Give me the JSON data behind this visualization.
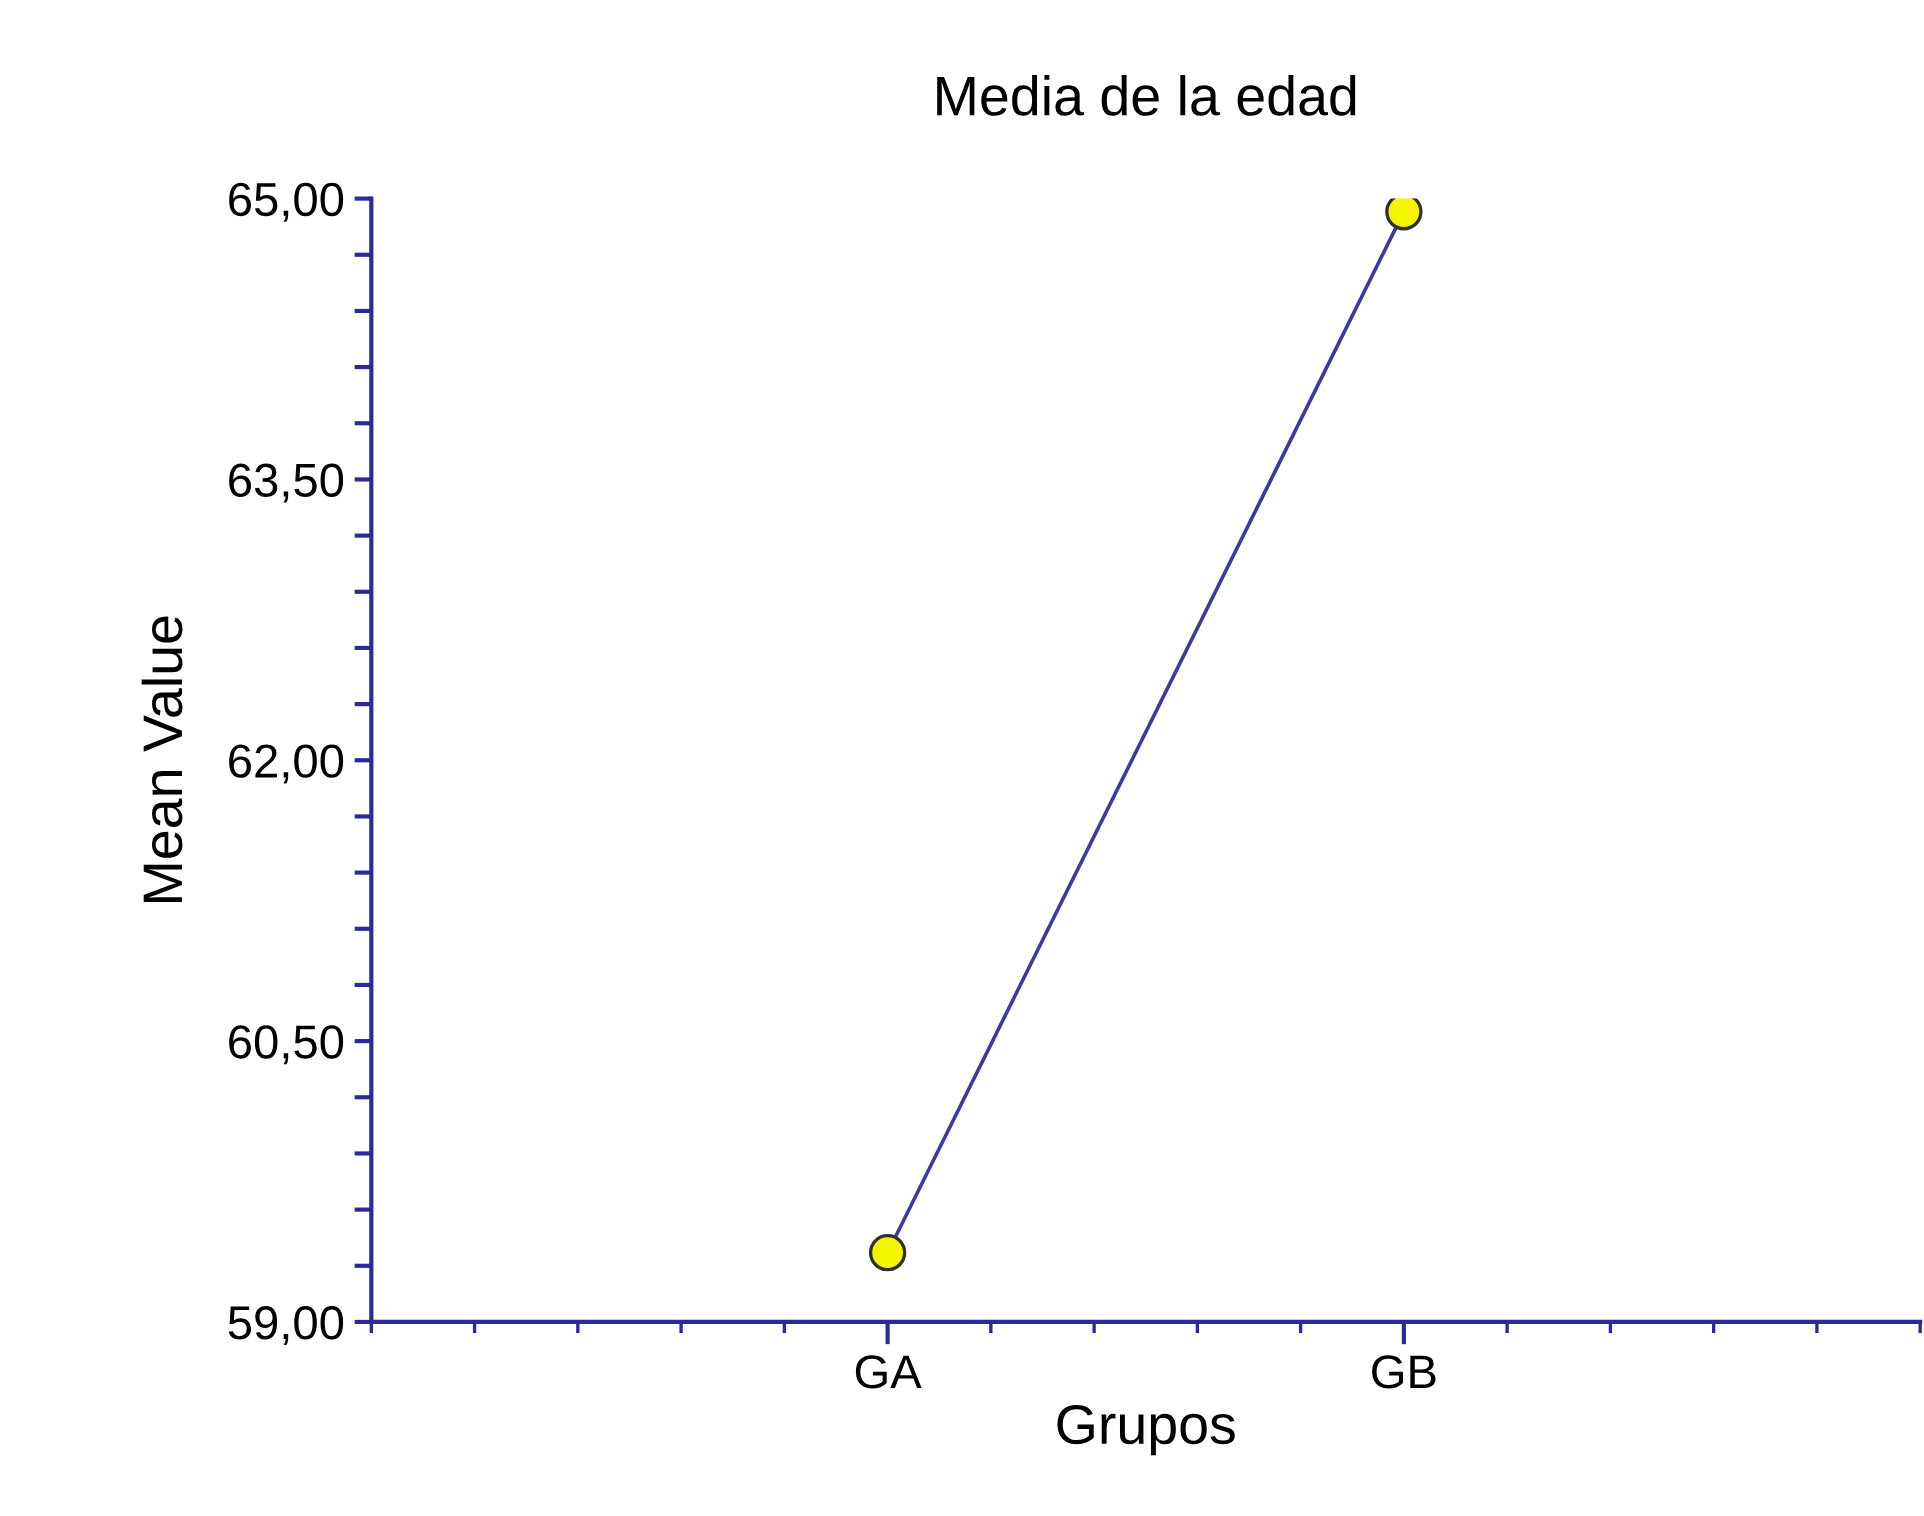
{
  "chart_data": {
    "type": "line",
    "title": "Media de la edad",
    "xlabel": "Grupos",
    "ylabel": "Mean Value",
    "categories": [
      "GA",
      "GB"
    ],
    "series": [
      {
        "color": "#3a3aa0",
        "colors": [
          "#f5f500",
          "#f5f500"
        ],
        "values": [
          59.37,
          64.93
        ]
      }
    ],
    "ylim": [
      59,
      65
    ],
    "yticks": [
      {
        "value": 59,
        "label": "59,00"
      },
      {
        "value": 59.3,
        "label": null
      },
      {
        "value": 59.6,
        "label": null
      },
      {
        "value": 59.9,
        "label": null
      },
      {
        "value": 60.2,
        "label": null
      },
      {
        "value": 60.5,
        "label": "60,50"
      },
      {
        "value": 60.8,
        "label": null
      },
      {
        "value": 61.1,
        "label": null
      },
      {
        "value": 61.4,
        "label": null
      },
      {
        "value": 61.7,
        "label": null
      },
      {
        "value": 62,
        "label": "62,00"
      },
      {
        "value": 62.3,
        "label": null
      },
      {
        "value": 62.6,
        "label": null
      },
      {
        "value": 62.9,
        "label": null
      },
      {
        "value": 63.2,
        "label": null
      },
      {
        "value": 63.5,
        "label": "63,50"
      },
      {
        "value": 63.8,
        "label": null
      },
      {
        "value": 64.1,
        "label": null
      },
      {
        "value": 64.4,
        "label": null
      },
      {
        "value": 64.7,
        "label": null
      },
      {
        "value": 65,
        "label": "65,00"
      }
    ],
    "marker": "circle",
    "line_style": "solid",
    "grid": false,
    "legend": false
  }
}
